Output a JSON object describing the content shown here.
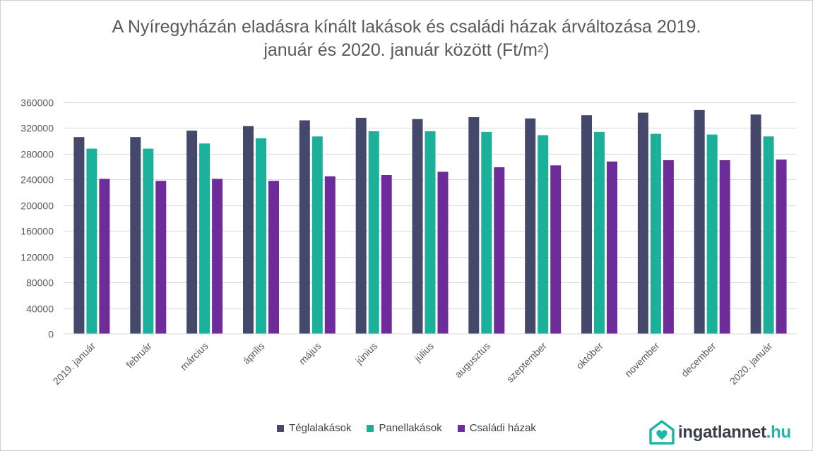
{
  "chart_data": {
    "type": "bar",
    "title_line1": "A Nyíregyházán eladásra kínált lakások és családi házak árváltozása 2019.",
    "title_line2_pre": "január és 2020. január között (Ft/m",
    "title_sup": "2",
    "title_line2_post": ")",
    "categories": [
      "2019. január",
      "február",
      "március",
      "április",
      "május",
      "június",
      "július",
      "augusztus",
      "szeptember",
      "október",
      "november",
      "december",
      "2020. január"
    ],
    "series": [
      {
        "name": "Téglalakások",
        "color": "#44496b",
        "values": [
          306000,
          306000,
          316000,
          323000,
          332000,
          336000,
          334000,
          337000,
          335000,
          340000,
          344000,
          348000,
          341000
        ]
      },
      {
        "name": "Panellakások",
        "color": "#1ab09a",
        "values": [
          288000,
          288000,
          296000,
          304000,
          307000,
          315000,
          315000,
          314000,
          309000,
          314000,
          311000,
          310000,
          307000
        ]
      },
      {
        "name": "Családi házak",
        "color": "#6e2c9b",
        "values": [
          241000,
          238000,
          241000,
          238000,
          245000,
          247000,
          252000,
          259000,
          262000,
          268000,
          270000,
          270000,
          271000
        ]
      }
    ],
    "ylim": [
      0,
      360000
    ],
    "yticks": [
      0,
      40000,
      80000,
      120000,
      160000,
      200000,
      240000,
      280000,
      320000,
      360000
    ],
    "grid": true,
    "legend_position": "bottom"
  },
  "logo": {
    "name": "ingatlannet",
    "tld": ".hu",
    "icon": "house-heart-icon"
  }
}
